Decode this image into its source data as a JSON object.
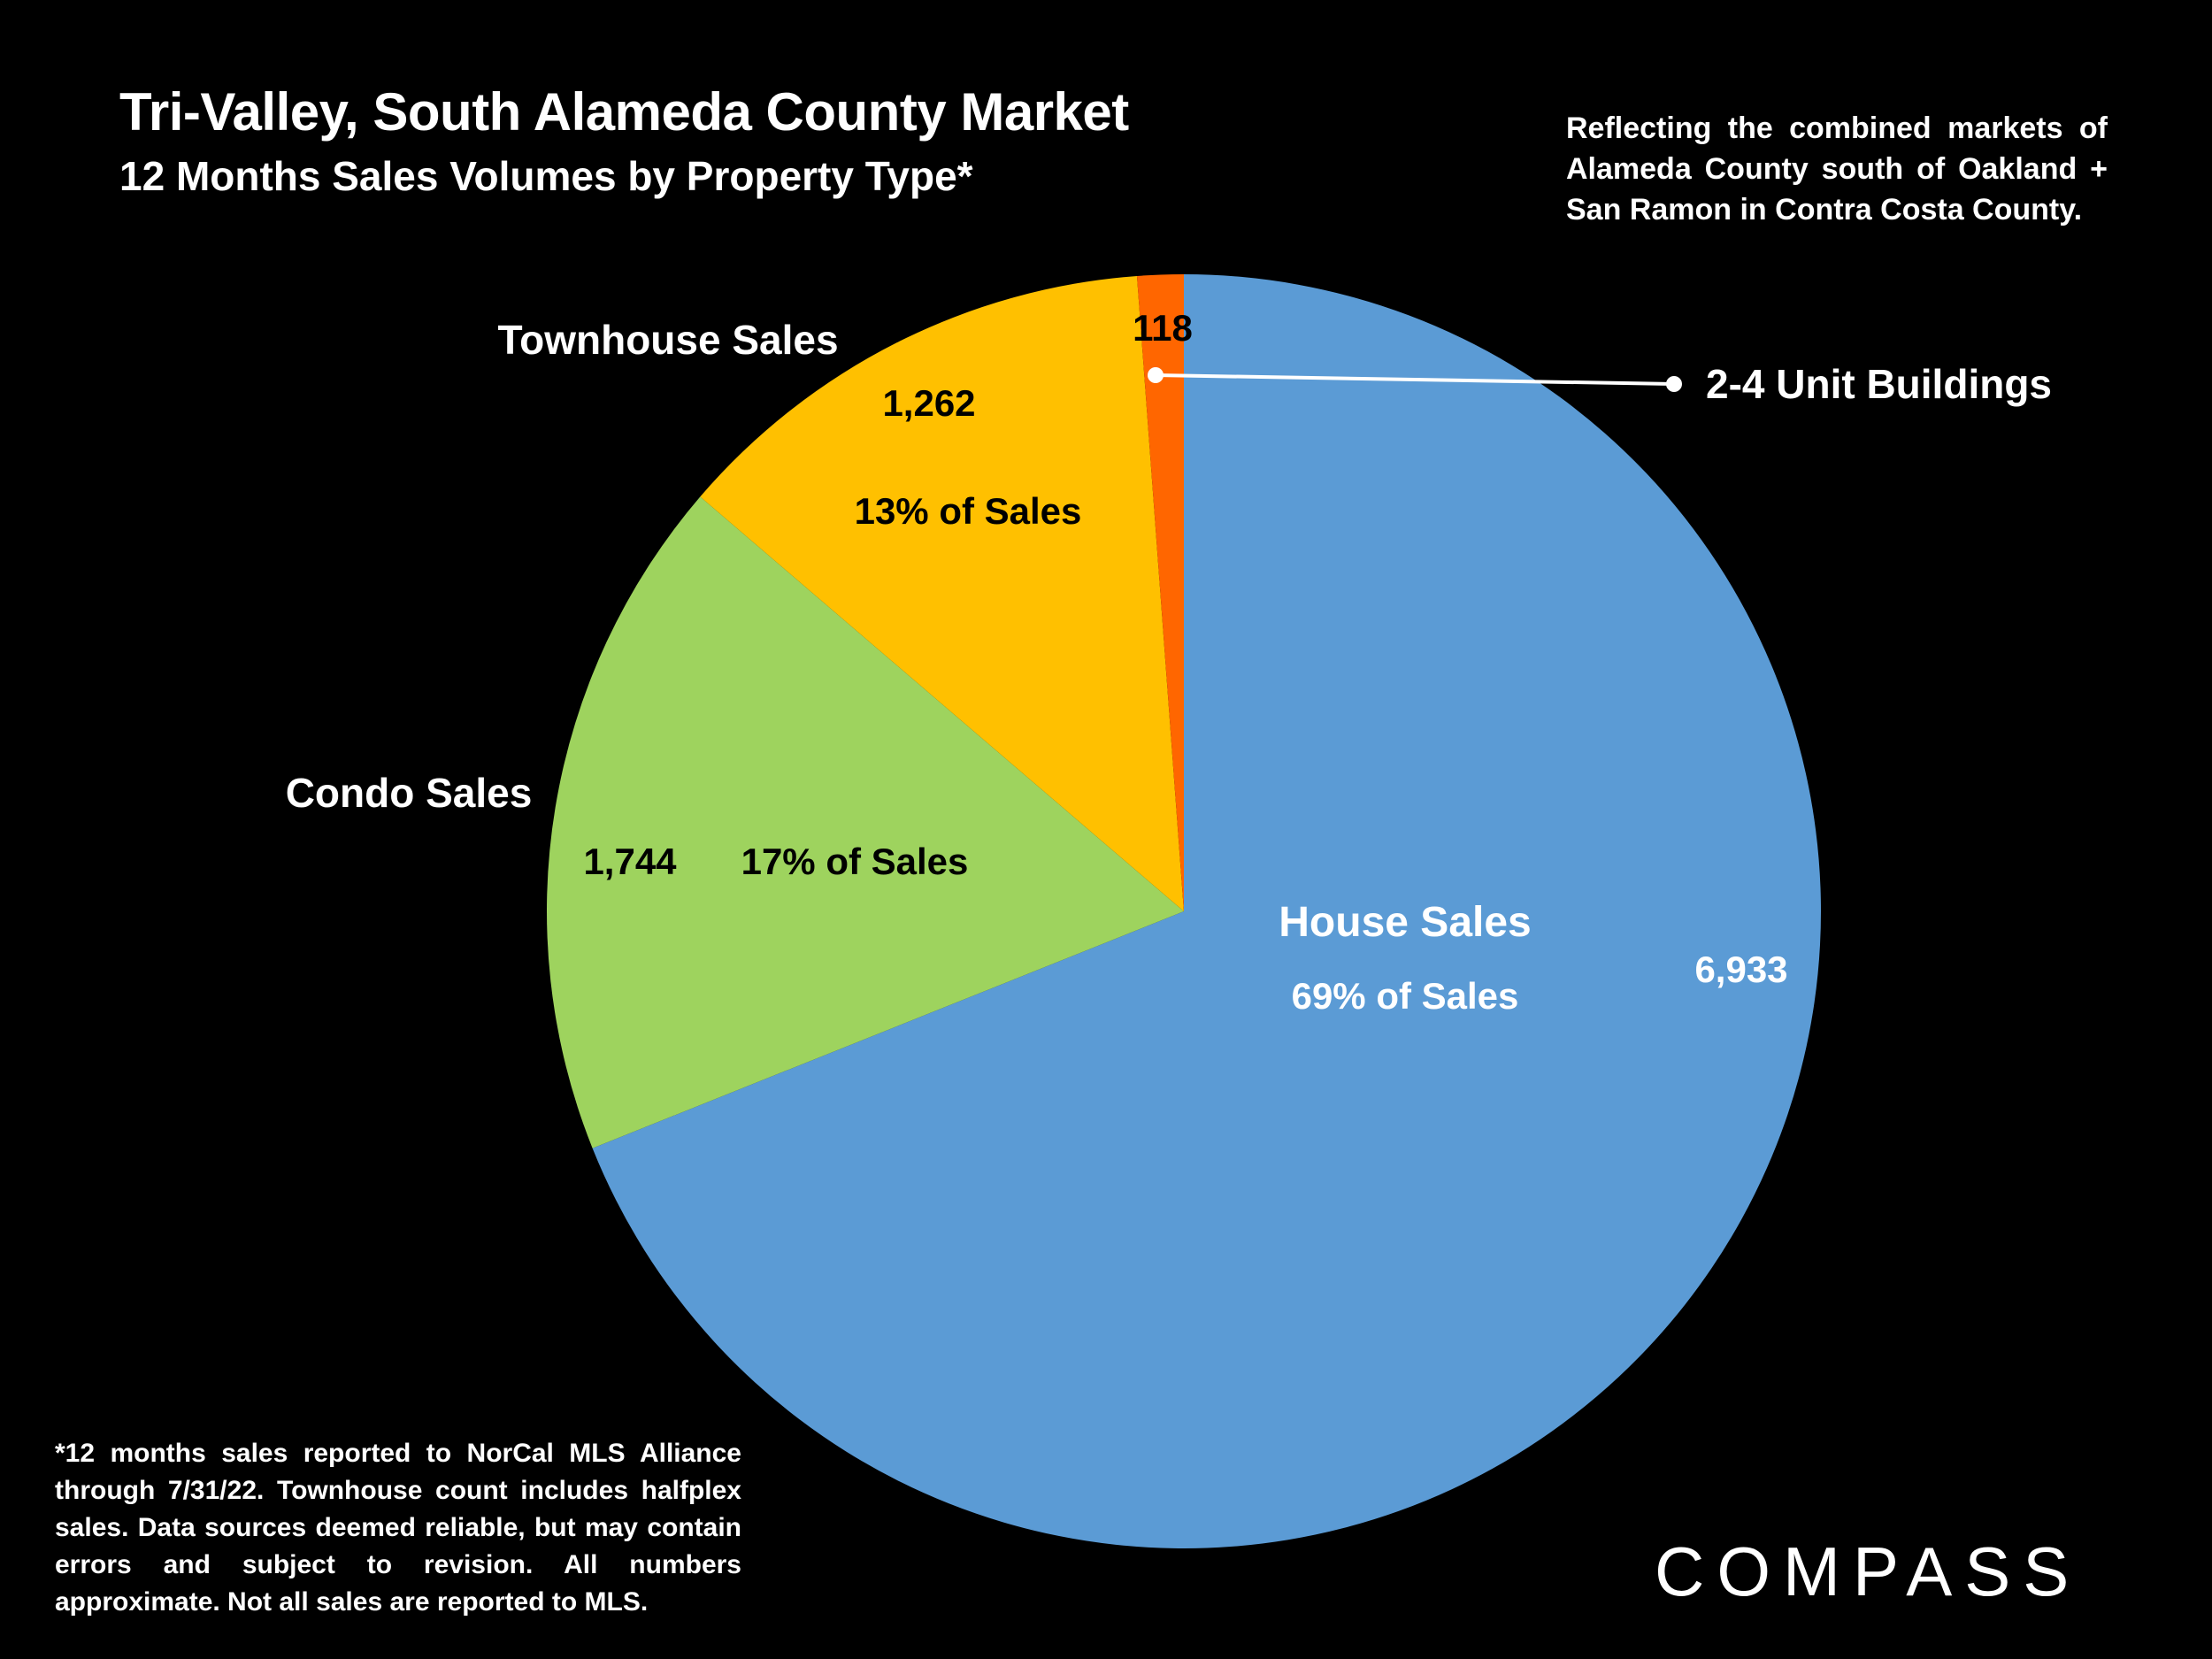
{
  "title": "Tri-Valley, South Alameda County Market",
  "subtitle": "12 Months Sales Volumes by Property Type*",
  "note": "Reflecting the combined markets of Alameda County south of Oakland + San Ramon in Contra Costa County.",
  "footnote": "*12 months sales reported to NorCal MLS Alliance through 7/31/22. Townhouse count includes halfplex sales.  Data sources deemed reliable, but may contain errors and subject to revision. All numbers approximate.  Not all sales are reported to MLS.",
  "logo_text": "COMPASS",
  "chart_data": {
    "type": "pie",
    "title": "12 Months Sales Volumes by Property Type*",
    "slices": [
      {
        "name": "House Sales",
        "value": 6933,
        "value_label": "6,933",
        "pct_label": "69% of Sales",
        "color": "#5B9BD5"
      },
      {
        "name": "Condo Sales",
        "value": 1744,
        "value_label": "1,744",
        "pct_label": "17% of Sales",
        "color": "#9ED35E"
      },
      {
        "name": "Townhouse Sales",
        "value": 1262,
        "value_label": "1,262",
        "pct_label": "13% of Sales",
        "color": "#FFC000"
      },
      {
        "name": "2-4 Unit Buildings",
        "value": 118,
        "value_label": "118",
        "pct_label": "",
        "color": "#FF6600"
      }
    ],
    "start_angle": "12 o'clock",
    "direction": "clockwise",
    "background": "#000000"
  }
}
